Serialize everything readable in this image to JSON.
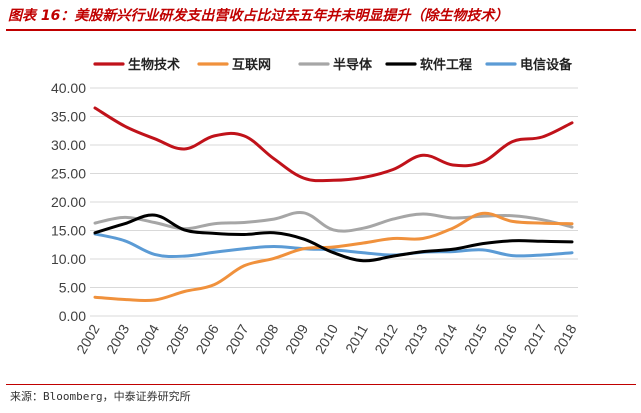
{
  "title": "图表 16：美股新兴行业研发支出营收占比过去五年并未明显提升（除生物技术）",
  "source": "来源：Bloomberg，中泰证券研究所",
  "chart_data": {
    "type": "line",
    "title": "",
    "xlabel": "",
    "ylabel": "",
    "ylim": [
      0,
      40
    ],
    "y_ticks": [
      "0.00",
      "5.00",
      "10.00",
      "15.00",
      "20.00",
      "25.00",
      "30.00",
      "35.00",
      "40.00"
    ],
    "grid": true,
    "legend_position": "top",
    "x": [
      "2002",
      "2003",
      "2004",
      "2005",
      "2006",
      "2007",
      "2008",
      "2009",
      "2010",
      "2011",
      "2012",
      "2013",
      "2014",
      "2015",
      "2016",
      "2017",
      "2018"
    ],
    "series": [
      {
        "name": "生物技术",
        "color": "#c0121a",
        "values": [
          36.5,
          33.3,
          31.1,
          29.3,
          31.6,
          31.6,
          27.6,
          24.2,
          23.8,
          24.3,
          25.7,
          28.2,
          26.5,
          27.0,
          30.6,
          31.4,
          33.9
        ]
      },
      {
        "name": "互联网",
        "color": "#f0913c",
        "values": [
          3.3,
          2.9,
          2.8,
          4.3,
          5.5,
          8.8,
          10.1,
          11.8,
          12.1,
          12.8,
          13.6,
          13.6,
          15.4,
          18.0,
          16.6,
          16.3,
          16.2
        ]
      },
      {
        "name": "半导体",
        "color": "#a6a6a6",
        "values": [
          16.3,
          17.3,
          16.4,
          15.3,
          16.2,
          16.4,
          17.0,
          18.1,
          15.1,
          15.4,
          17.0,
          17.9,
          17.2,
          17.5,
          17.6,
          16.9,
          15.6
        ]
      },
      {
        "name": "软件工程",
        "color": "#000000",
        "values": [
          14.6,
          16.2,
          17.7,
          15.1,
          14.5,
          14.3,
          14.6,
          13.5,
          11.1,
          9.7,
          10.5,
          11.3,
          11.7,
          12.7,
          13.2,
          13.1,
          13.0
        ]
      },
      {
        "name": "电信设备",
        "color": "#5b9bd5",
        "values": [
          14.4,
          13.2,
          10.8,
          10.5,
          11.2,
          11.8,
          12.2,
          11.8,
          11.6,
          11.1,
          10.7,
          11.2,
          11.3,
          11.6,
          10.6,
          10.7,
          11.1
        ]
      }
    ]
  }
}
